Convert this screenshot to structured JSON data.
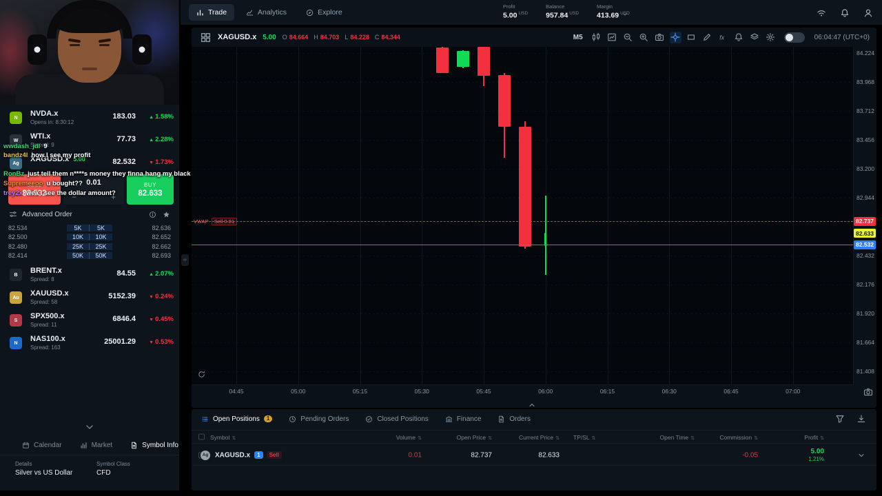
{
  "colors": {
    "green": "#0fdb57",
    "red": "#f5303e",
    "blue": "#2d81ff",
    "yellow": "#e9f231",
    "sell": "#f8544e",
    "buy": "#18cf5e"
  },
  "topbar": {
    "tabs": [
      {
        "label": "Trade",
        "icon": "chart-bars",
        "active": true
      },
      {
        "label": "Analytics",
        "icon": "analytics",
        "active": false
      },
      {
        "label": "Explore",
        "icon": "compass",
        "active": false
      }
    ],
    "stats": [
      {
        "label": "Profit",
        "value": "5.00",
        "currency": "USD"
      },
      {
        "label": "Balance",
        "value": "957.84",
        "currency": "USD"
      },
      {
        "label": "Margin",
        "value": "413.69",
        "currency": "USD"
      }
    ],
    "right_icons": [
      "wifi",
      "bell",
      "user"
    ]
  },
  "watchlist_top": [
    {
      "symbol": "NVDA.x",
      "sub": "Opens in: 8:30:12",
      "price": "183.03",
      "change": "1.58%",
      "dir": "up",
      "icon_bg": "#76b900",
      "icon_txt": "N"
    },
    {
      "symbol": "WTI.x",
      "sub": "Spread: 9",
      "price": "77.73",
      "change": "2.28%",
      "dir": "up",
      "icon_bg": "#2b313a",
      "icon_txt": "W"
    },
    {
      "symbol": "XAGUSD.x",
      "badge": "5.00",
      "sub": "",
      "price": "82.532",
      "change": "1.73%",
      "dir": "down",
      "icon_bg": "#3d6f84",
      "icon_txt": "Ag"
    }
  ],
  "order_panel": {
    "sell_label": "SELL",
    "sell_price": "82.532",
    "qty": "0.01",
    "minus": "−",
    "plus": "+",
    "buy_label": "BUY",
    "buy_price": "82.633",
    "advanced": "Advanced Order"
  },
  "dom_rows": [
    {
      "bid": "82.534",
      "bid_size": "5K",
      "ask_size": "5K",
      "ask": "82.636"
    },
    {
      "bid": "82.500",
      "bid_size": "10K",
      "ask_size": "10K",
      "ask": "82.652"
    },
    {
      "bid": "82.480",
      "bid_size": "25K",
      "ask_size": "25K",
      "ask": "82.662"
    },
    {
      "bid": "82.414",
      "bid_size": "50K",
      "ask_size": "50K",
      "ask": "82.693"
    }
  ],
  "watchlist_bottom": [
    {
      "symbol": "BRENT.x",
      "sub": "Spread: 8",
      "price": "84.55",
      "change": "2.07%",
      "dir": "up",
      "icon_bg": "#20262e",
      "icon_txt": "B"
    },
    {
      "symbol": "XAUUSD.x",
      "sub": "Spread: 58",
      "price": "5152.39",
      "change": "0.24%",
      "dir": "down",
      "icon_bg": "#caa53d",
      "icon_txt": "Au"
    },
    {
      "symbol": "SPX500.x",
      "sub": "Spread: 11",
      "price": "6846.4",
      "change": "0.45%",
      "dir": "down",
      "icon_bg": "#b03a48",
      "icon_txt": "S"
    },
    {
      "symbol": "NAS100.x",
      "sub": "Spread: 163",
      "price": "25001.29",
      "change": "0.53%",
      "dir": "down",
      "icon_bg": "#1c69c9",
      "icon_txt": "N"
    }
  ],
  "sidebar_tabs": [
    {
      "label": "Calendar",
      "icon": "calendar",
      "active": false
    },
    {
      "label": "Market",
      "icon": "market",
      "active": false
    },
    {
      "label": "Symbol Info",
      "icon": "doc",
      "active": true
    }
  ],
  "symbol_info": {
    "details_label": "Details",
    "name": "Silver vs US Dollar",
    "class_label": "Symbol Class",
    "class_value": "CFD"
  },
  "chat": [
    {
      "user": "wwdash_jdl",
      "user_color": "#49d17c",
      "text": "9"
    },
    {
      "user": "bandz4l",
      "user_color": "#e8c23a",
      "text": "how I see my profit"
    },
    {
      "user": "RonBz",
      "user_color": "#49d17c",
      "text": "just tell them n****s money they finna hang my black a**"
    },
    {
      "user": "Supremeeoo",
      "user_color": "#f08c3a",
      "text": "u bought??"
    },
    {
      "user": "trey2x",
      "user_color": "#b07de8",
      "text": "wea I see the dollar amount?"
    }
  ],
  "chart_header": {
    "symbol": "XAGUSD.x",
    "profit": "5.00",
    "ohlc": [
      {
        "k": "O",
        "v": "84.664"
      },
      {
        "k": "H",
        "v": "84.703"
      },
      {
        "k": "L",
        "v": "84.228"
      },
      {
        "k": "C",
        "v": "84.344"
      }
    ],
    "timeframe": "M5",
    "tools": [
      {
        "name": "candles",
        "active": false
      },
      {
        "name": "chart-type",
        "active": false
      },
      {
        "name": "zoom-out",
        "active": false
      },
      {
        "name": "zoom-in",
        "active": false
      },
      {
        "name": "camera",
        "active": false
      },
      {
        "name": "crosshair",
        "active": true
      },
      {
        "name": "rect-tool",
        "active": false
      },
      {
        "name": "pencil",
        "active": false
      },
      {
        "name": "fx",
        "active": false
      },
      {
        "name": "bell",
        "active": false
      },
      {
        "name": "layers",
        "active": false
      },
      {
        "name": "gear",
        "active": false
      }
    ],
    "clock": "06:04:47 (UTC+0)"
  },
  "chart": {
    "type": "candlestick",
    "y_labels": [
      "84.224",
      "83.968",
      "83.712",
      "83.456",
      "83.200",
      "82.944",
      "82.432",
      "82.176",
      "81.920",
      "81.664",
      "81.408"
    ],
    "x_labels": [
      "04:45",
      "05:00",
      "05:15",
      "05:30",
      "05:45",
      "06:00",
      "06:15",
      "06:30",
      "06:45",
      "07:00"
    ],
    "candles": [
      {
        "t": "05:35",
        "o": 84.27,
        "h": 84.28,
        "l": 84.05,
        "c": 84.05
      },
      {
        "t": "05:40",
        "o": 84.1,
        "h": 84.25,
        "l": 84.09,
        "c": 84.24
      },
      {
        "t": "05:45",
        "o": 84.28,
        "h": 84.29,
        "l": 83.93,
        "c": 84.02
      },
      {
        "t": "05:50",
        "o": 84.03,
        "h": 84.05,
        "l": 83.3,
        "c": 83.57
      },
      {
        "t": "05:55",
        "o": 83.57,
        "h": 83.62,
        "l": 82.49,
        "c": 82.51
      },
      {
        "t": "06:00",
        "o": 82.52,
        "h": 82.96,
        "l": 82.26,
        "c": 82.633,
        "thin": true
      }
    ],
    "lines": [
      {
        "price": "82.737",
        "value": 82.737,
        "type": "vwap",
        "style": "dashed",
        "color": "#f5303e",
        "tag_bg": "#f5303e",
        "tag_color": "#ffffff"
      },
      {
        "price": "82.633",
        "value": 82.633,
        "type": "current",
        "style": "none",
        "color": "#e9f231",
        "tag_bg": "#e9f231",
        "tag_color": "#10151b"
      },
      {
        "price": "82.532",
        "value": 82.532,
        "type": "order",
        "style": "solid",
        "color": "#2d81ff",
        "tag_bg": "#2d81ff",
        "tag_color": "#ffffff"
      }
    ],
    "vwap_label": "VWAP",
    "vwap_chip": "Sell 0.01"
  },
  "positions_panel": {
    "tabs": [
      {
        "label": "Open Positions",
        "icon": "list",
        "badge": "1",
        "active": true
      },
      {
        "label": "Pending Orders",
        "icon": "clock",
        "active": false
      },
      {
        "label": "Closed Positions",
        "icon": "check",
        "active": false
      },
      {
        "label": "Finance",
        "icon": "bank",
        "active": false
      },
      {
        "label": "Orders",
        "icon": "doc",
        "active": false
      }
    ],
    "right_icons": [
      "funnel",
      "download"
    ],
    "columns": [
      "Symbol",
      "Volume",
      "Open Price",
      "Current Price",
      "TP/SL",
      "Open Time",
      "Commission",
      "Profit"
    ],
    "row": {
      "icon_txt": "Ag",
      "symbol": "XAGUSD.x",
      "count_badge": "1",
      "side": "Sell",
      "volume": "0.01",
      "open_price": "82.737",
      "current_price": "82.633",
      "tp_sl": "",
      "open_time": "",
      "commission": "-0.05",
      "profit": "5.00",
      "profit_pct": "1.21%"
    }
  }
}
